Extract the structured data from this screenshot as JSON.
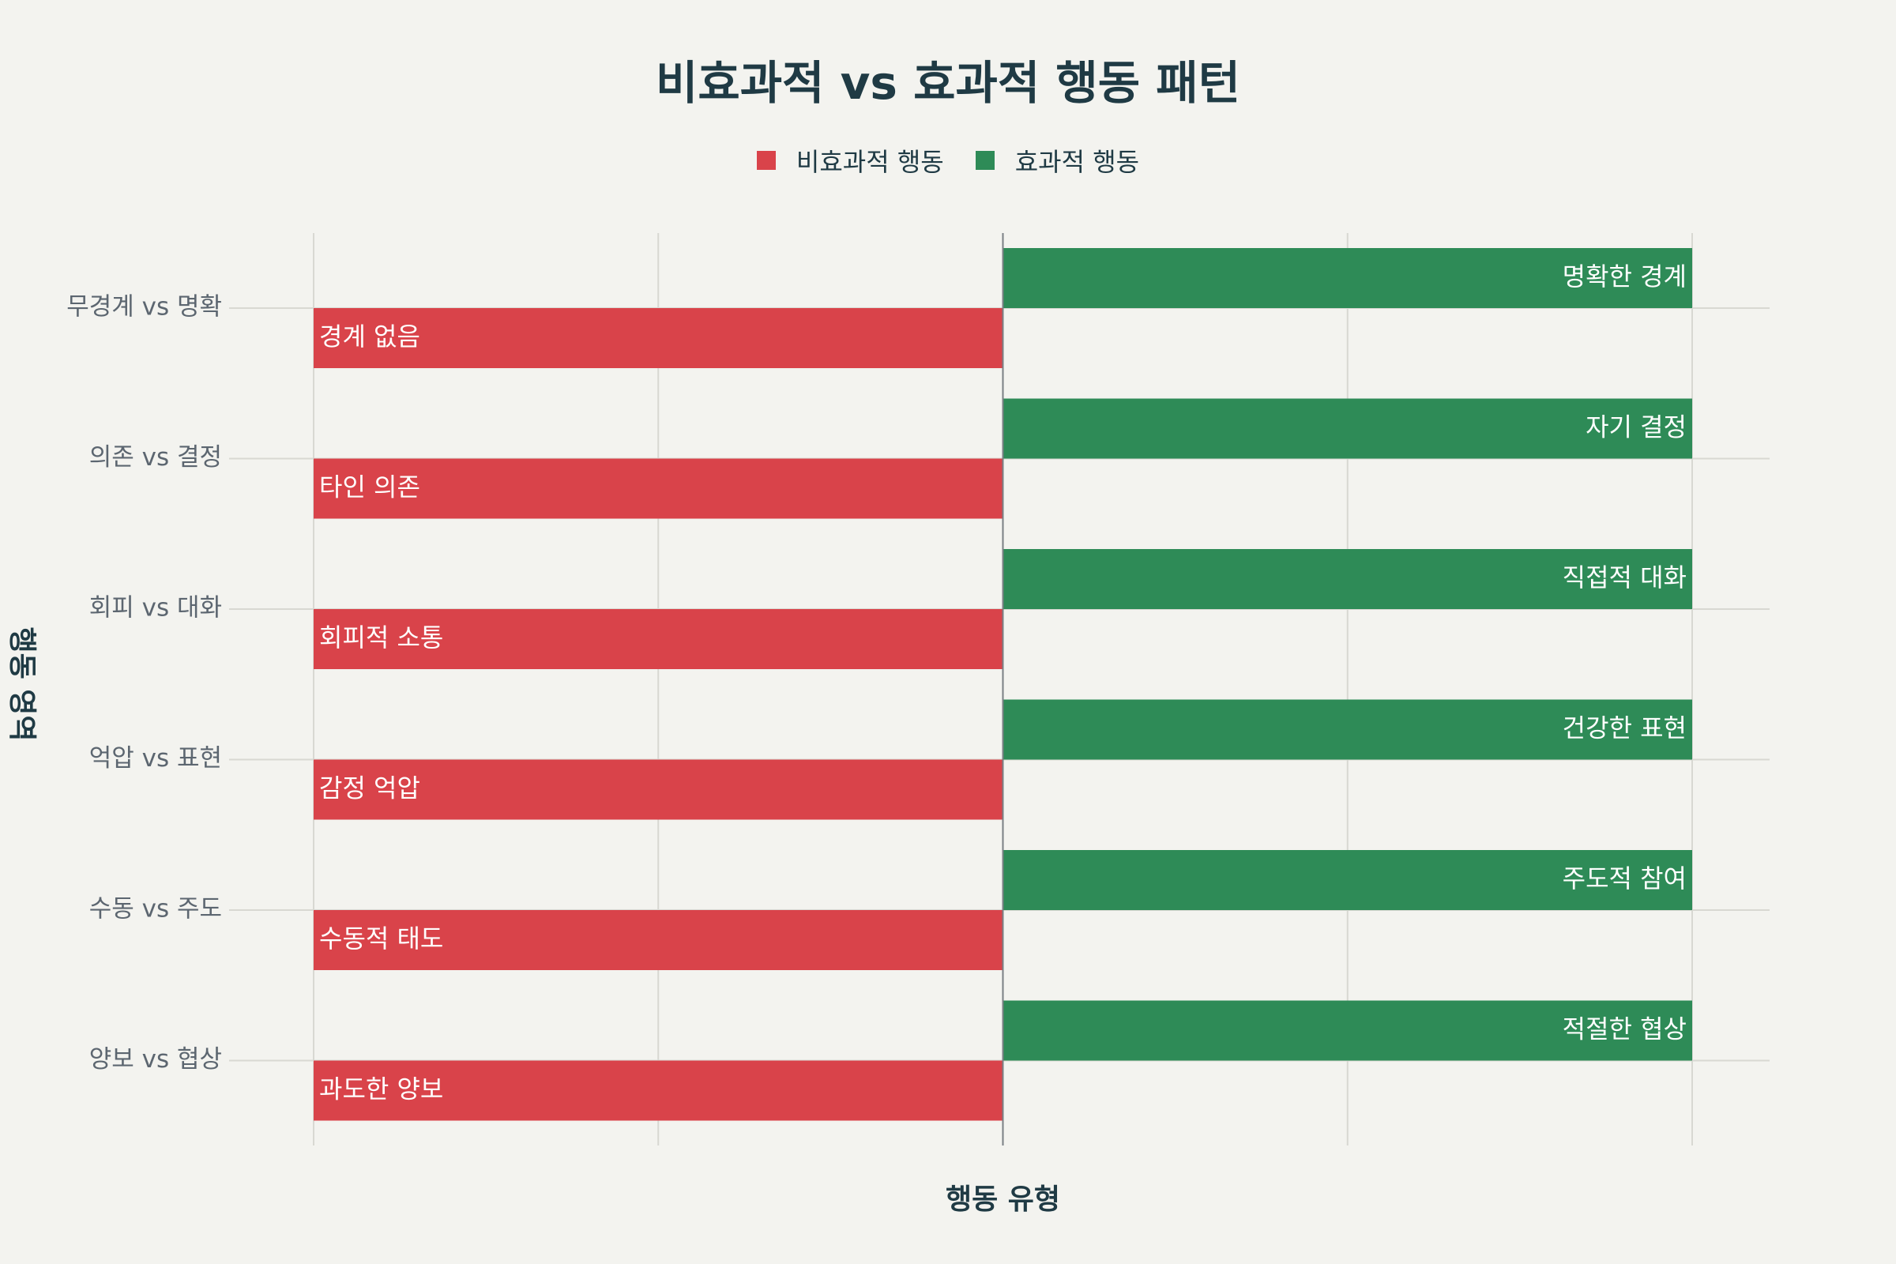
{
  "chart_data": {
    "type": "bar",
    "title": "비효과적 vs 효과적 행동 패턴",
    "xlabel": "행동 유형",
    "ylabel": "행동 영역",
    "xlim": [
      -1,
      1
    ],
    "grid": true,
    "legend_position": "top-center",
    "categories": [
      "무경계 vs 명확",
      "의존 vs 결정",
      "회피 vs 대화",
      "억압 vs 표현",
      "수동 vs 주도",
      "양보 vs 협상"
    ],
    "series": [
      {
        "name": "비효과적 행동",
        "color": "#d9434a",
        "values": [
          -1,
          -1,
          -1,
          -1,
          -1,
          -1
        ],
        "labels": [
          "경계 없음",
          "타인 의존",
          "회피적 소통",
          "감정 억압",
          "수동적 태도",
          "과도한 양보"
        ]
      },
      {
        "name": "효과적 행동",
        "color": "#2e8b57",
        "values": [
          1,
          1,
          1,
          1,
          1,
          1
        ],
        "labels": [
          "명확한 경계",
          "자기 결정",
          "직접적 대화",
          "건강한 표현",
          "주도적 참여",
          "적절한 협상"
        ]
      }
    ]
  }
}
